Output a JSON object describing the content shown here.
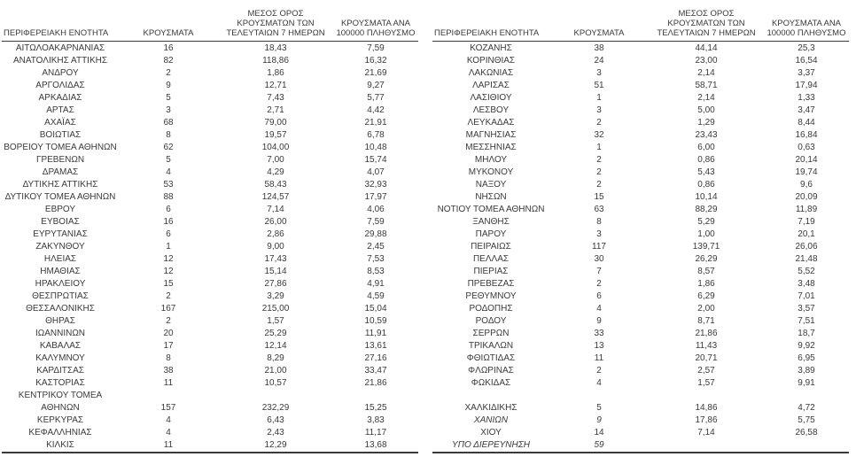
{
  "meta": {
    "text_color": "#3a3a3a",
    "line_color": "#3a3a3a",
    "background": "#ffffff",
    "decimal_separator": ","
  },
  "columns": {
    "region": "ΠΕΡΙΦΕΡΕΙΑΚΗ ΕΝΟΤΗΤΑ",
    "cases": "ΚΡΟΥΣΜΑΤΑ",
    "avg7": "ΜΕΣΟΣ ΟΡΟΣ\nΚΡΟΥΣΜΑΤΩΝ ΤΩΝ\nΤΕΛΕΥΤΑΙΩΝ 7 ΗΜΕΡΩΝ",
    "per100k": "ΚΡΟΥΣΜΑΤΑ ΑΝΑ\n100000 ΠΛΗΘΥΣΜΟ"
  },
  "tables": [
    {
      "rows": [
        {
          "cells": [
            "ΑΙΤΩΛΟΑΚΑΡΝΑΝΙΑΣ",
            "16",
            "18,43",
            "7,59"
          ]
        },
        {
          "cells": [
            "ΑΝΑΤΟΛΙΚΗΣ ΑΤΤΙΚΗΣ",
            "82",
            "118,86",
            "16,32"
          ]
        },
        {
          "cells": [
            "ΑΝΔΡΟΥ",
            "2",
            "1,86",
            "21,69"
          ]
        },
        {
          "cells": [
            "ΑΡΓΟΛΙΔΑΣ",
            "9",
            "12,71",
            "9,27"
          ]
        },
        {
          "cells": [
            "ΑΡΚΑΔΙΑΣ",
            "5",
            "7,43",
            "5,77"
          ]
        },
        {
          "cells": [
            "ΑΡΤΑΣ",
            "3",
            "2,71",
            "4,42"
          ]
        },
        {
          "cells": [
            "ΑΧΑΪΑΣ",
            "68",
            "79,00",
            "21,91"
          ]
        },
        {
          "cells": [
            "ΒΟΙΩΤΙΑΣ",
            "8",
            "19,57",
            "6,78"
          ]
        },
        {
          "cells": [
            "ΒΟΡΕΙΟΥ ΤΟΜΕΑ ΑΘΗΝΩΝ",
            "62",
            "104,00",
            "10,48"
          ]
        },
        {
          "cells": [
            "ΓΡΕΒΕΝΩΝ",
            "5",
            "7,00",
            "15,74"
          ]
        },
        {
          "cells": [
            "ΔΡΑΜΑΣ",
            "4",
            "4,29",
            "4,07"
          ]
        },
        {
          "cells": [
            "ΔΥΤΙΚΗΣ ΑΤΤΙΚΗΣ",
            "53",
            "58,43",
            "32,93"
          ]
        },
        {
          "cells": [
            "ΔΥΤΙΚΟΥ ΤΟΜΕΑ ΑΘΗΝΩΝ",
            "88",
            "124,57",
            "17,97"
          ]
        },
        {
          "cells": [
            "ΕΒΡΟΥ",
            "6",
            "7,14",
            "4,06"
          ]
        },
        {
          "cells": [
            "ΕΥΒΟΙΑΣ",
            "16",
            "26,00",
            "7,59"
          ]
        },
        {
          "cells": [
            "ΕΥΡΥΤΑΝΙΑΣ",
            "6",
            "2,86",
            "29,88"
          ]
        },
        {
          "cells": [
            "ΖΑΚΥΝΘΟΥ",
            "1",
            "9,00",
            "2,45"
          ]
        },
        {
          "cells": [
            "ΗΛΕΙΑΣ",
            "12",
            "17,43",
            "7,53"
          ]
        },
        {
          "cells": [
            "ΗΜΑΘΙΑΣ",
            "12",
            "15,14",
            "8,53"
          ]
        },
        {
          "cells": [
            "ΗΡΑΚΛΕΙΟΥ",
            "15",
            "27,86",
            "4,91"
          ]
        },
        {
          "cells": [
            "ΘΕΣΠΡΩΤΙΑΣ",
            "2",
            "3,29",
            "4,59"
          ]
        },
        {
          "cells": [
            "ΘΕΣΣΑΛΟΝΙΚΗΣ",
            "167",
            "215,00",
            "15,04"
          ]
        },
        {
          "cells": [
            "ΘΗΡΑΣ",
            "2",
            "1,57",
            "10,59"
          ]
        },
        {
          "cells": [
            "ΙΩΑΝΝΙΝΩΝ",
            "20",
            "25,29",
            "11,91"
          ]
        },
        {
          "cells": [
            "ΚΑΒΑΛΑΣ",
            "17",
            "12,14",
            "13,61"
          ]
        },
        {
          "cells": [
            "ΚΑΛΥΜΝΟΥ",
            "8",
            "8,29",
            "27,16"
          ]
        },
        {
          "cells": [
            "ΚΑΡΔΙΤΣΑΣ",
            "38",
            "21,00",
            "33,47"
          ]
        },
        {
          "cells": [
            "ΚΑΣΤΟΡΙΑΣ",
            "11",
            "10,57",
            "21,86"
          ]
        },
        {
          "cells": [
            "ΚΕΝΤΡΙΚΟΥ ΤΟΜΕΑ",
            "",
            "",
            ""
          ]
        },
        {
          "cells": [
            "ΑΘΗΝΩΝ",
            "157",
            "232,29",
            "15,25"
          ]
        },
        {
          "cells": [
            "ΚΕΡΚΥΡΑΣ",
            "4",
            "6,43",
            "3,83"
          ]
        },
        {
          "cells": [
            "ΚΕΦΑΛΛΗΝΙΑΣ",
            "4",
            "2,43",
            "11,17"
          ]
        },
        {
          "cells": [
            "ΚΙΛΚΙΣ",
            "11",
            "12,29",
            "13,68"
          ]
        }
      ]
    },
    {
      "rows": [
        {
          "cells": [
            "ΚΟΖΑΝΗΣ",
            "38",
            "44,14",
            "25,3"
          ]
        },
        {
          "cells": [
            "ΚΟΡΙΝΘΙΑΣ",
            "24",
            "23,00",
            "16,54"
          ]
        },
        {
          "cells": [
            "ΛΑΚΩΝΙΑΣ",
            "3",
            "2,14",
            "3,37"
          ]
        },
        {
          "cells": [
            "ΛΑΡΙΣΑΣ",
            "51",
            "58,71",
            "17,94"
          ]
        },
        {
          "cells": [
            "ΛΑΣΙΘΙΟΥ",
            "1",
            "2,14",
            "1,33"
          ]
        },
        {
          "cells": [
            "ΛΕΣΒΟΥ",
            "3",
            "5,00",
            "3,47"
          ]
        },
        {
          "cells": [
            "ΛΕΥΚΑΔΑΣ",
            "2",
            "1,29",
            "8,44"
          ]
        },
        {
          "cells": [
            "ΜΑΓΝΗΣΙΑΣ",
            "32",
            "23,43",
            "16,84"
          ]
        },
        {
          "cells": [
            "ΜΕΣΣΗΝΙΑΣ",
            "1",
            "6,00",
            "0,63"
          ]
        },
        {
          "cells": [
            "ΜΗΛΟΥ",
            "2",
            "0,86",
            "20,14"
          ]
        },
        {
          "cells": [
            "ΜΥΚΟΝΟΥ",
            "2",
            "5,43",
            "19,74"
          ]
        },
        {
          "cells": [
            "ΝΑΞΟΥ",
            "2",
            "0,86",
            "9,6"
          ]
        },
        {
          "cells": [
            "ΝΗΣΩΝ",
            "15",
            "10,14",
            "20,09"
          ]
        },
        {
          "cells": [
            "ΝΟΤΙΟΥ ΤΟΜΕΑ ΑΘΗΝΩΝ",
            "63",
            "88,29",
            "11,89"
          ]
        },
        {
          "cells": [
            "ΞΑΝΘΗΣ",
            "8",
            "5,29",
            "7,19"
          ]
        },
        {
          "cells": [
            "ΠΑΡΟΥ",
            "3",
            "1,00",
            "20,1"
          ]
        },
        {
          "cells": [
            "ΠΕΙΡΑΙΩΣ",
            "117",
            "139,71",
            "26,06"
          ]
        },
        {
          "cells": [
            "ΠΕΛΛΑΣ",
            "30",
            "26,29",
            "21,48"
          ]
        },
        {
          "cells": [
            "ΠΙΕΡΙΑΣ",
            "7",
            "8,57",
            "5,52"
          ]
        },
        {
          "cells": [
            "ΠΡΕΒΕΖΑΣ",
            "2",
            "1,86",
            "3,48"
          ]
        },
        {
          "cells": [
            "ΡΕΘΥΜΝΟΥ",
            "6",
            "6,29",
            "7,01"
          ]
        },
        {
          "cells": [
            "ΡΟΔΟΠΗΣ",
            "4",
            "2,00",
            "3,57"
          ]
        },
        {
          "cells": [
            "ΡΟΔΟΥ",
            "9",
            "8,71",
            "7,51"
          ]
        },
        {
          "cells": [
            "ΣΕΡΡΩΝ",
            "33",
            "21,86",
            "18,7"
          ]
        },
        {
          "cells": [
            "ΤΡΙΚΑΛΩΝ",
            "13",
            "11,43",
            "9,92"
          ]
        },
        {
          "cells": [
            "ΦΘΙΩΤΙΔΑΣ",
            "11",
            "20,71",
            "6,95"
          ]
        },
        {
          "cells": [
            "ΦΛΩΡΙΝΑΣ",
            "2",
            "2,57",
            "3,89"
          ]
        },
        {
          "cells": [
            "ΦΩΚΙΔΑΣ",
            "4",
            "1,57",
            "9,91"
          ]
        },
        {
          "cells": [
            "",
            "",
            "",
            ""
          ]
        },
        {
          "cells": [
            "ΧΑΛΚΙΔΙΚΗΣ",
            "5",
            "14,86",
            "4,72"
          ]
        },
        {
          "cells": [
            "ΧΑΝΙΩΝ",
            "9",
            "17,86",
            "5,75"
          ],
          "italic": true
        },
        {
          "cells": [
            "ΧΙΟΥ",
            "14",
            "7,14",
            "26,58"
          ]
        },
        {
          "cells": [
            "ΥΠΟ ΔΙΕΡΕΥΝΗΣΗ",
            "59",
            "",
            ""
          ],
          "italic": true,
          "align_left": true
        }
      ]
    }
  ]
}
